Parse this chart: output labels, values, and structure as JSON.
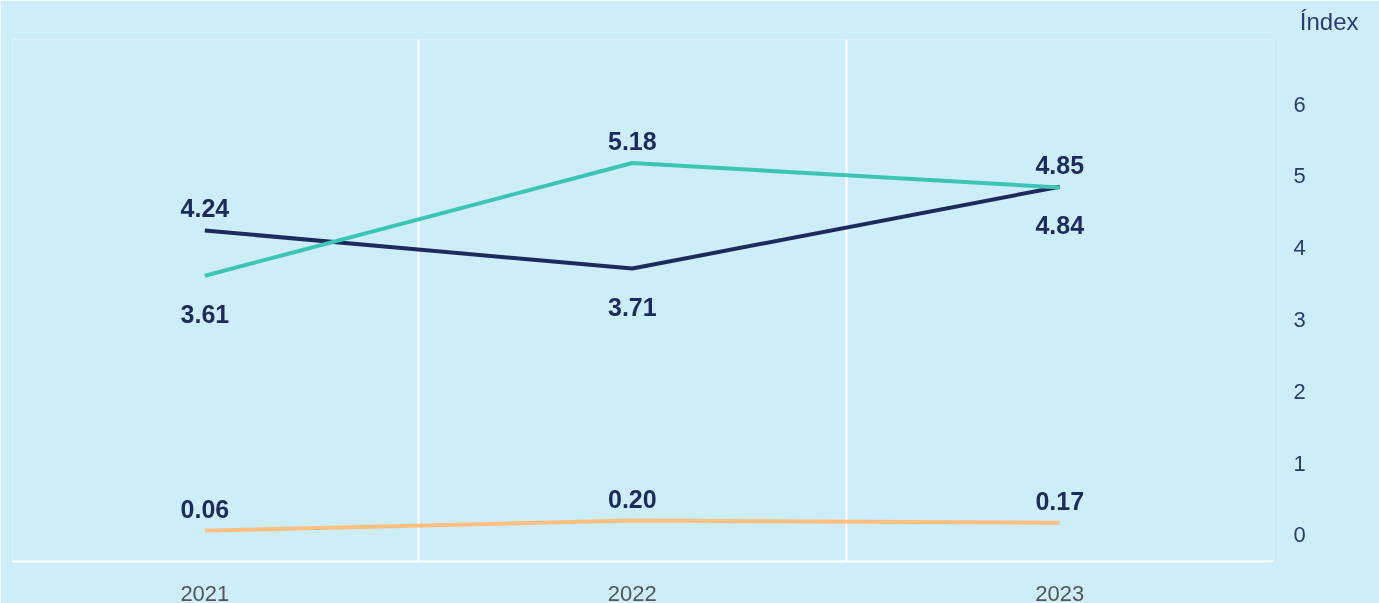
{
  "chart_data": {
    "type": "line",
    "ylabel": "Índex",
    "categories": [
      "2021",
      "2022",
      "2023"
    ],
    "series": [
      {
        "color": "#1d2a5c",
        "values": [
          4.24,
          3.71,
          4.85
        ],
        "value_labels": [
          "4.24",
          "3.71",
          "4.85"
        ]
      },
      {
        "color": "#3cc4b4",
        "values": [
          3.61,
          5.18,
          4.84
        ],
        "value_labels": [
          "3.61",
          "5.18",
          "4.84"
        ]
      },
      {
        "color": "#ffbf80",
        "values": [
          0.06,
          0.2,
          0.17
        ],
        "value_labels": [
          "0.06",
          "0.20",
          "0.17"
        ]
      }
    ],
    "ylim": [
      -0.37,
      6.9
    ],
    "yticks": [
      0,
      1,
      2,
      3,
      4,
      5,
      6
    ],
    "grid": "x",
    "marker": "none",
    "line_style": "solid"
  }
}
